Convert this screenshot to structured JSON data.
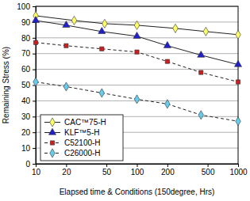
{
  "chart_data": {
    "type": "line",
    "x_label": "Elapsed time & Conditions (150degree, Hrs)",
    "y_label": "Remaining Stress (%)",
    "log": "x",
    "grid": true,
    "legend": "lower left",
    "xlim": [
      10,
      1000
    ],
    "xticks": [
      10,
      20,
      50,
      100,
      200,
      500,
      1000
    ],
    "ylim": [
      0,
      100
    ],
    "yticks": [
      0,
      10,
      20,
      30,
      40,
      50,
      60,
      70,
      80,
      90,
      100
    ],
    "series": [
      {
        "name": "CAC™75-H",
        "color": "#ffff66",
        "marker": "diamond",
        "line_style": "solid",
        "x": [
          10,
          24,
          48,
          100,
          240,
          480,
          1000
        ],
        "values": [
          94,
          91,
          89,
          88,
          86,
          84,
          82
        ]
      },
      {
        "name": "KLF™5-H",
        "color": "#1f1fcc",
        "marker": "triangle",
        "line_style": "solid",
        "x": [
          10,
          20,
          45,
          100,
          200,
          430,
          1000
        ],
        "values": [
          91,
          88,
          84,
          81,
          75,
          69,
          63
        ]
      },
      {
        "name": "C52100-H",
        "color": "#cc1f1f",
        "marker": "square",
        "line_style": "dashed",
        "x": [
          10,
          20,
          45,
          100,
          200,
          430,
          1000
        ],
        "values": [
          77,
          75,
          73,
          71,
          65,
          58,
          52
        ]
      },
      {
        "name": "C26000-H",
        "color": "#66ccee",
        "marker": "diamond",
        "line_style": "dashed",
        "x": [
          10,
          20,
          45,
          100,
          200,
          430,
          1000
        ],
        "values": [
          52,
          49,
          45,
          41,
          38,
          31,
          27
        ]
      }
    ]
  }
}
